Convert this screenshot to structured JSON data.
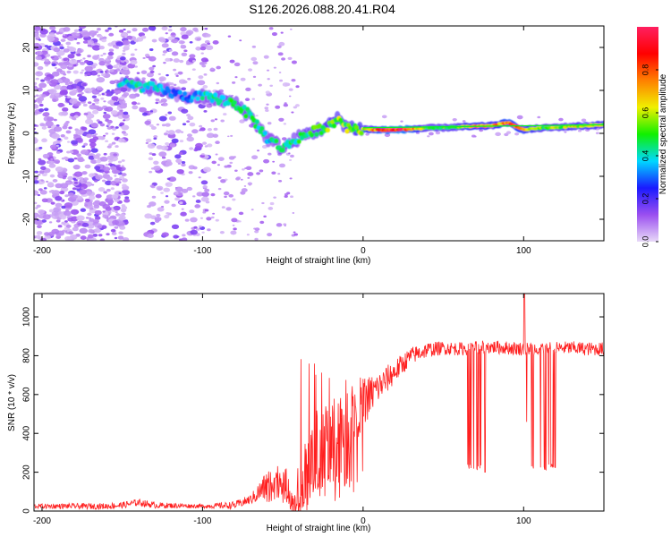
{
  "title": "S126.2026.088.20.41.R04",
  "chart_data": [
    {
      "id": "spectrogram",
      "type": "heatmap",
      "xlabel": "Height of straight line (km)",
      "ylabel": "Frequency (Hz)",
      "xlim": [
        -205,
        150
      ],
      "ylim": [
        -25,
        25
      ],
      "xticks": [
        -200,
        -100,
        0,
        100
      ],
      "yticks": [
        -20,
        -10,
        0,
        10,
        20
      ],
      "colorbar": {
        "label": "Normalized spectral amplitude",
        "range": [
          0,
          1
        ],
        "ticks": [
          0.0,
          0.2,
          0.4,
          0.6,
          0.8
        ],
        "tick_labels": [
          "0.0",
          "0.2",
          "0.4",
          "0.6",
          "0.8"
        ],
        "colormap": [
          "#e8d9f8",
          "#9b4ff0",
          "#1a1aff",
          "#00d8ff",
          "#10f000",
          "#f0f000",
          "#ff8000",
          "#ff0000",
          "#ff2060"
        ]
      },
      "ridge": [
        {
          "x": -150,
          "y": 11.5,
          "a": 0.38
        },
        {
          "x": -140,
          "y": 11.0,
          "a": 0.42
        },
        {
          "x": -130,
          "y": 10.5,
          "a": 0.4
        },
        {
          "x": -120,
          "y": 9.5,
          "a": 0.3
        },
        {
          "x": -110,
          "y": 8.5,
          "a": 0.3
        },
        {
          "x": -100,
          "y": 8.5,
          "a": 0.4
        },
        {
          "x": -90,
          "y": 8.0,
          "a": 0.42
        },
        {
          "x": -80,
          "y": 7.0,
          "a": 0.45
        },
        {
          "x": -70,
          "y": 4.0,
          "a": 0.45
        },
        {
          "x": -60,
          "y": -1.0,
          "a": 0.38
        },
        {
          "x": -50,
          "y": -3.5,
          "a": 0.45
        },
        {
          "x": -40,
          "y": -1.0,
          "a": 0.45
        },
        {
          "x": -30,
          "y": 0.5,
          "a": 0.5
        },
        {
          "x": -20,
          "y": 2.0,
          "a": 0.55
        },
        {
          "x": -15,
          "y": 3.5,
          "a": 0.55
        },
        {
          "x": -10,
          "y": 1.5,
          "a": 0.55
        },
        {
          "x": 0,
          "y": 1.0,
          "a": 0.62
        },
        {
          "x": 10,
          "y": 0.8,
          "a": 0.82
        },
        {
          "x": 20,
          "y": 0.8,
          "a": 0.92
        },
        {
          "x": 30,
          "y": 1.0,
          "a": 0.85
        },
        {
          "x": 40,
          "y": 1.2,
          "a": 0.5
        },
        {
          "x": 50,
          "y": 1.3,
          "a": 0.52
        },
        {
          "x": 60,
          "y": 1.5,
          "a": 0.55
        },
        {
          "x": 70,
          "y": 1.6,
          "a": 0.75
        },
        {
          "x": 80,
          "y": 1.8,
          "a": 0.65
        },
        {
          "x": 90,
          "y": 2.5,
          "a": 0.82
        },
        {
          "x": 100,
          "y": 0.8,
          "a": 0.75
        },
        {
          "x": 110,
          "y": 1.2,
          "a": 0.55
        },
        {
          "x": 120,
          "y": 1.4,
          "a": 0.55
        },
        {
          "x": 130,
          "y": 1.6,
          "a": 0.6
        },
        {
          "x": 140,
          "y": 1.8,
          "a": 0.62
        },
        {
          "x": 150,
          "y": 2.0,
          "a": 0.6
        }
      ]
    },
    {
      "id": "snr",
      "type": "line",
      "color": "#ff2020",
      "xlabel": "Height of straight line (km)",
      "ylabel": "SNR (10 * v/v)",
      "xlim": [
        -205,
        150
      ],
      "ylim": [
        0,
        1120
      ],
      "xticks": [
        -200,
        -100,
        0,
        100
      ],
      "yticks": [
        0,
        200,
        400,
        600,
        800,
        1000
      ],
      "envelope": {
        "x": [
          -205,
          -160,
          -150,
          -140,
          -130,
          -100,
          -80,
          -70,
          -60,
          -55,
          -50,
          -40,
          -35,
          -30,
          -25,
          -20,
          -15,
          -10,
          -5,
          0,
          10,
          20,
          30,
          40,
          50,
          60,
          70,
          80,
          90,
          100,
          110,
          120,
          130,
          140,
          150
        ],
        "y": [
          25,
          25,
          30,
          45,
          30,
          25,
          30,
          60,
          130,
          180,
          150,
          60,
          200,
          320,
          350,
          380,
          420,
          460,
          520,
          560,
          640,
          720,
          800,
          830,
          840,
          835,
          840,
          845,
          840,
          835,
          840,
          838,
          840,
          835,
          835
        ]
      },
      "noise": {
        "x": [
          -205,
          -140,
          -100,
          -70,
          -60,
          -50,
          -40,
          -30,
          -20,
          -10,
          0,
          10,
          30,
          50,
          150
        ],
        "amp": [
          12,
          18,
          10,
          25,
          80,
          70,
          160,
          240,
          260,
          220,
          130,
          80,
          45,
          35,
          35
        ]
      },
      "dropouts": [
        {
          "from": 65,
          "to": 74,
          "value": 210
        },
        {
          "from": 104,
          "to": 120,
          "value": 210
        },
        {
          "from": 101.5,
          "to": 102.5,
          "value": 440
        }
      ],
      "spikes": [
        {
          "x": 100.5,
          "value": 1120
        },
        {
          "x": 76,
          "value": 200
        }
      ]
    }
  ]
}
